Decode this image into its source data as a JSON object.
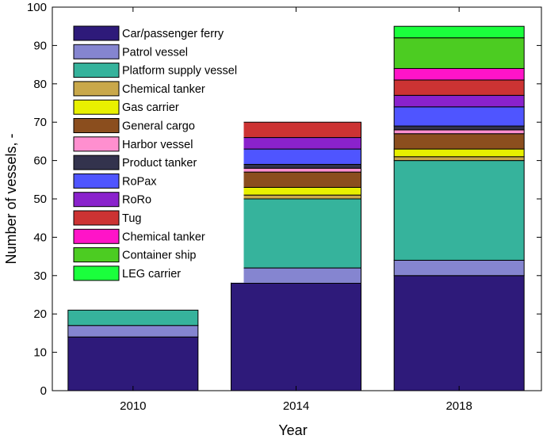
{
  "chart_data": {
    "type": "bar",
    "stacked": true,
    "title": "",
    "xlabel": "Year",
    "ylabel": "Number of vessels, -",
    "ylim": [
      0,
      100
    ],
    "yticks": [
      0,
      10,
      20,
      30,
      40,
      50,
      60,
      70,
      80,
      90,
      100
    ],
    "categories": [
      "2010",
      "2014",
      "2018"
    ],
    "grid": false,
    "legend_position": "top-left",
    "series": [
      {
        "name": "Car/passenger ferry",
        "color": "#2e1a7a",
        "values": [
          14,
          28,
          30
        ]
      },
      {
        "name": "Patrol vessel",
        "color": "#8585d0",
        "values": [
          3,
          4,
          4
        ]
      },
      {
        "name": "Platform supply vessel",
        "color": "#36b39c",
        "values": [
          4,
          18,
          26
        ]
      },
      {
        "name": "Chemical tanker",
        "color": "#c9a84a",
        "values": [
          0,
          1,
          1
        ]
      },
      {
        "name": "Gas carrier",
        "color": "#e8f000",
        "values": [
          0,
          2,
          2
        ]
      },
      {
        "name": "General cargo",
        "color": "#8b4e1e",
        "values": [
          0,
          4,
          4
        ]
      },
      {
        "name": "Harbor vessel",
        "color": "#ff8fcf",
        "values": [
          0,
          1,
          1
        ]
      },
      {
        "name": "Product tanker",
        "color": "#33334d",
        "values": [
          0,
          1,
          1
        ]
      },
      {
        "name": "RoPax",
        "color": "#4f55ff",
        "values": [
          0,
          4,
          5
        ]
      },
      {
        "name": "RoRo",
        "color": "#8a22cc",
        "values": [
          0,
          3,
          3
        ]
      },
      {
        "name": "Tug",
        "color": "#cc3333",
        "values": [
          0,
          4,
          4
        ]
      },
      {
        "name": "Chemical tanker",
        "color": "#ff14c8",
        "values": [
          0,
          0,
          3
        ]
      },
      {
        "name": "Container ship",
        "color": "#4ccc22",
        "values": [
          0,
          0,
          8
        ]
      },
      {
        "name": "LEG carrier",
        "color": "#1aff3c",
        "values": [
          0,
          0,
          3
        ]
      }
    ]
  }
}
